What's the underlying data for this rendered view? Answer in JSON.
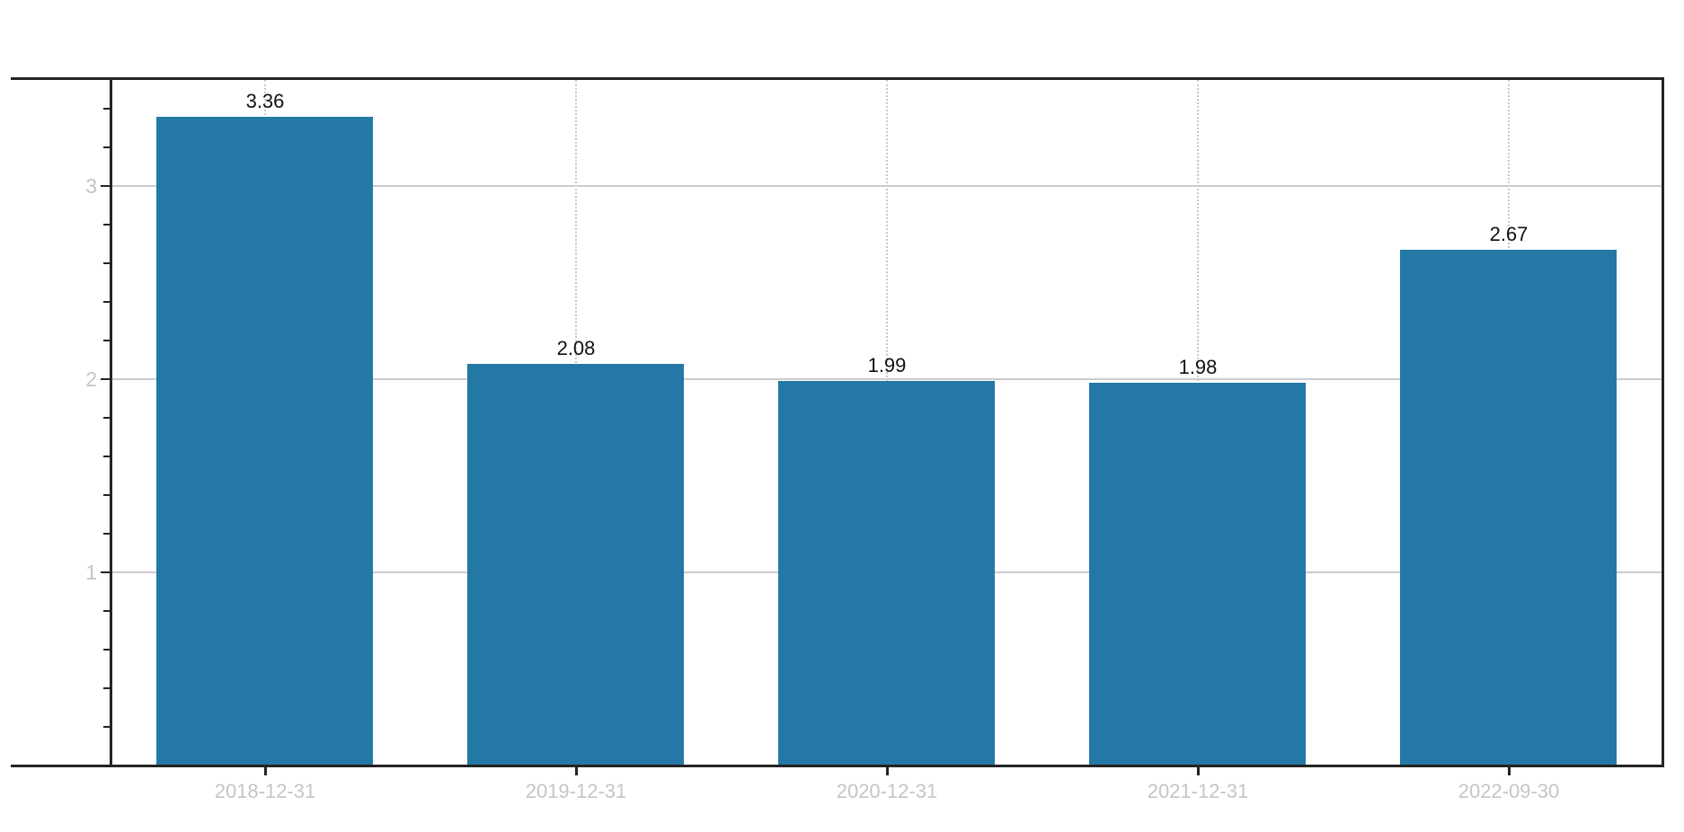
{
  "chart_data": {
    "type": "bar",
    "title": "",
    "xlabel": "",
    "ylabel": "",
    "categories": [
      "2018-12-31",
      "2019-12-31",
      "2020-12-31",
      "2021-12-31",
      "2022-09-30"
    ],
    "values": [
      3.36,
      2.08,
      1.99,
      1.98,
      2.67
    ],
    "value_labels": [
      "3.36",
      "2.08",
      "1.99",
      "1.98",
      "2.67"
    ],
    "ylim": [
      0,
      3.55
    ],
    "yticks": [
      0,
      1,
      2,
      3
    ],
    "ytick_labels": [
      "1",
      "2",
      "3"
    ],
    "minor_ytick_step": 0.2,
    "legend": "none",
    "grid": {
      "horizontal": "solid",
      "vertical": "dotted",
      "vertical_positions": "bar-centers"
    },
    "colors": {
      "bar": "#2478a6",
      "horizontal_grid": "#cccccc",
      "vertical_grid": "#c9c9c9",
      "spine": "#242424",
      "axis_tick_label": "#c5c5c5",
      "value_label": "#111111",
      "background": "#ffffff"
    }
  }
}
